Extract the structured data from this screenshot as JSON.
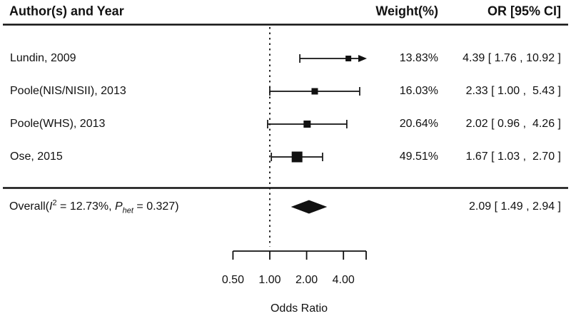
{
  "header": {
    "author_col": "Author(s) and Year",
    "weight_col": "Weight(%)",
    "or_col": "OR [95% CI]"
  },
  "overall_label": {
    "prefix": "Overall(",
    "stat_i": "I",
    "i_exponent": "2",
    "middle": " = 12.73%, ",
    "stat_p": "P",
    "p_subscript": "het",
    "suffix": " = 0.327)"
  },
  "colors": {
    "ink": "#111111",
    "background": "#ffffff"
  },
  "chart_data": {
    "type": "forest",
    "title": "",
    "x_axis": {
      "label": "Odds Ratio",
      "scale": "log2",
      "ticks": [
        0.5,
        1.0,
        2.0,
        4.0
      ],
      "tick_labels": [
        "0.50",
        "1.00",
        "2.00",
        "4.00"
      ],
      "range": [
        0.5,
        6.1
      ],
      "reference_line": 1.0
    },
    "studies": [
      {
        "label": "Lundin, 2009",
        "weight_pct": 13.83,
        "weight_text": "13.83%",
        "or": 4.39,
        "ci_low": 1.76,
        "ci_high": 10.92,
        "or_text": "4.39 [ 1.76 , 10.92 ]",
        "ci_high_clipped": true
      },
      {
        "label": "Poole(NIS/NISII), 2013",
        "weight_pct": 16.03,
        "weight_text": "16.03%",
        "or": 2.33,
        "ci_low": 1.0,
        "ci_high": 5.43,
        "or_text": "2.33 [ 1.00 ,  5.43 ]",
        "ci_high_clipped": false
      },
      {
        "label": "Poole(WHS), 2013",
        "weight_pct": 20.64,
        "weight_text": "20.64%",
        "or": 2.02,
        "ci_low": 0.96,
        "ci_high": 4.26,
        "or_text": "2.02 [ 0.96 ,  4.26 ]",
        "ci_high_clipped": false
      },
      {
        "label": "Ose, 2015",
        "weight_pct": 49.51,
        "weight_text": "49.51%",
        "or": 1.67,
        "ci_low": 1.03,
        "ci_high": 2.7,
        "or_text": "1.67 [ 1.03 ,  2.70 ]",
        "ci_high_clipped": false
      }
    ],
    "overall": {
      "or": 2.09,
      "ci_low": 1.49,
      "ci_high": 2.94,
      "or_text": "2.09 [ 1.49 , 2.94 ]",
      "i_squared_pct": 12.73,
      "p_het": 0.327
    }
  }
}
